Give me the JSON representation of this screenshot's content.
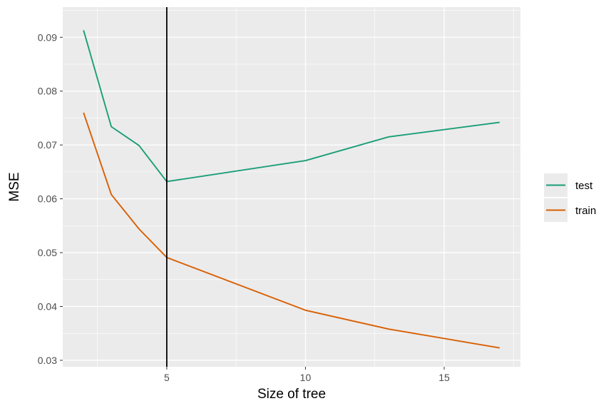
{
  "chart_data": {
    "type": "line",
    "xlabel": "Size of tree",
    "ylabel": "MSE",
    "xlim": [
      1.25,
      17.75
    ],
    "ylim": [
      0.0288,
      0.0956
    ],
    "x_ticks": [
      5,
      10,
      15
    ],
    "x_tick_labels": [
      "5",
      "10",
      "15"
    ],
    "x_minor_ticks": [
      2.5,
      7.5,
      12.5,
      17.5
    ],
    "y_ticks": [
      0.03,
      0.04,
      0.05,
      0.06,
      0.07,
      0.08,
      0.09
    ],
    "y_tick_labels": [
      "0.03",
      "0.04",
      "0.05",
      "0.06",
      "0.07",
      "0.08",
      "0.09"
    ],
    "y_minor_ticks": [
      0.035,
      0.045,
      0.055,
      0.065,
      0.075,
      0.085,
      0.095
    ],
    "grid": true,
    "legend_position": "right",
    "vline": {
      "x": 5,
      "color": "#000000"
    },
    "series": [
      {
        "name": "test",
        "color": "#1b9e77",
        "x": [
          2,
          3,
          4,
          5,
          10,
          13,
          17
        ],
        "y": [
          0.0913,
          0.0734,
          0.0699,
          0.0632,
          0.0671,
          0.0715,
          0.0742
        ]
      },
      {
        "name": "train",
        "color": "#d95f02",
        "x": [
          2,
          3,
          4,
          5,
          10,
          13,
          17
        ],
        "y": [
          0.076,
          0.0608,
          0.0544,
          0.0491,
          0.0393,
          0.0358,
          0.0323
        ]
      }
    ]
  }
}
